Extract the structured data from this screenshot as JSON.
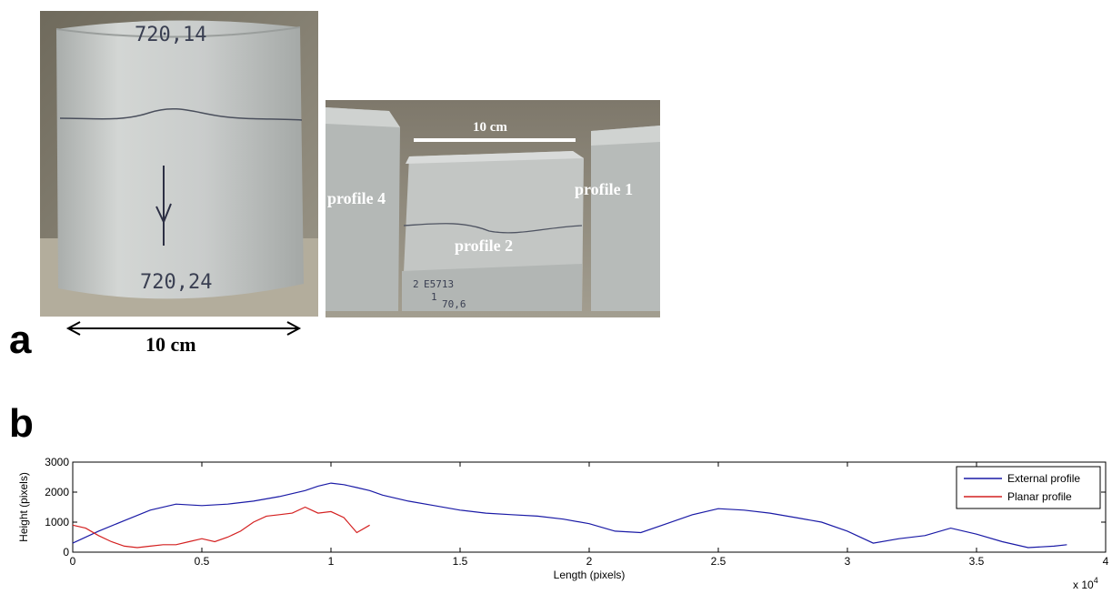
{
  "panels": {
    "a": {
      "letter": "a"
    },
    "b": {
      "letter": "b"
    }
  },
  "photo_left": {
    "top_mark": "720,14",
    "bottom_mark": "720,24",
    "scale_label": "10 cm"
  },
  "photo_right": {
    "scale_label": "10 cm",
    "labels": {
      "profile_4": "profile 4",
      "profile_2": "profile 2",
      "profile_1": "profile 1"
    },
    "sample_marks": [
      "2",
      "E5713",
      "1",
      "70,6"
    ]
  },
  "colors": {
    "external": "#1a1aa6",
    "planar": "#d42020",
    "rock": "#c9cdcc",
    "background_photo": "#8a8476"
  },
  "chart_data": {
    "type": "line",
    "xlabel": "Length (pixels)",
    "ylabel": "Height (pixels)",
    "x_multiplier_label": "x 10",
    "x_multiplier_exponent": "4",
    "xlim": [
      0,
      40000
    ],
    "ylim": [
      0,
      3000
    ],
    "x_ticks": [
      0,
      5000,
      10000,
      15000,
      20000,
      25000,
      30000,
      35000,
      40000
    ],
    "x_tick_labels": [
      "0",
      "0.5",
      "1",
      "1.5",
      "2",
      "2.5",
      "3",
      "3.5",
      "4"
    ],
    "y_ticks": [
      0,
      1000,
      2000,
      3000
    ],
    "y_tick_labels": [
      "0",
      "1000",
      "2000",
      "3000"
    ],
    "legend_position": "top-right",
    "series": [
      {
        "name": "External profile",
        "color": "#1a1aa6",
        "x": [
          0,
          1000,
          2000,
          3000,
          4000,
          5000,
          6000,
          7000,
          8000,
          9000,
          9500,
          10000,
          10500,
          11000,
          11500,
          12000,
          13000,
          14000,
          15000,
          16000,
          17000,
          18000,
          19000,
          20000,
          21000,
          22000,
          23000,
          24000,
          25000,
          26000,
          27000,
          28000,
          29000,
          30000,
          31000,
          32000,
          33000,
          34000,
          35000,
          36000,
          37000,
          38000,
          38500
        ],
        "y": [
          300,
          700,
          1050,
          1400,
          1600,
          1550,
          1600,
          1700,
          1850,
          2050,
          2200,
          2300,
          2250,
          2150,
          2050,
          1900,
          1700,
          1550,
          1400,
          1300,
          1250,
          1200,
          1100,
          950,
          700,
          650,
          950,
          1250,
          1450,
          1400,
          1300,
          1150,
          1000,
          700,
          300,
          450,
          550,
          800,
          600,
          350,
          150,
          200,
          250
        ]
      },
      {
        "name": "Planar profile",
        "color": "#d42020",
        "x": [
          0,
          500,
          1000,
          1500,
          2000,
          2500,
          3000,
          3500,
          4000,
          4500,
          5000,
          5500,
          6000,
          6500,
          7000,
          7500,
          8000,
          8500,
          9000,
          9500,
          10000,
          10500,
          11000,
          11500
        ],
        "y": [
          900,
          800,
          550,
          350,
          200,
          150,
          200,
          250,
          250,
          350,
          450,
          350,
          500,
          700,
          1000,
          1200,
          1250,
          1300,
          1500,
          1300,
          1350,
          1150,
          650,
          900
        ]
      }
    ]
  }
}
